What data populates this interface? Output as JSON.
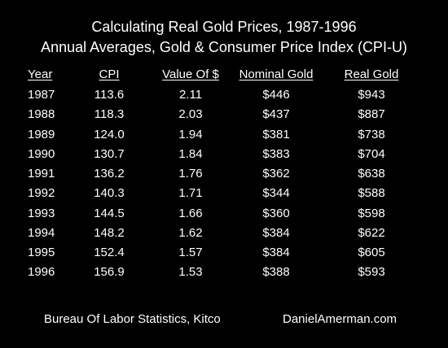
{
  "chart_data": {
    "type": "table",
    "title": "Calculating Real Gold Prices, 1987-1996",
    "subtitle": "Annual Averages, Gold & Consumer Price Index (CPI-U)",
    "columns": [
      "Year",
      "CPI",
      "Value Of $",
      "Nominal Gold",
      "Real Gold"
    ],
    "rows": [
      [
        "1987",
        "113.6",
        "2.11",
        "$446",
        "$943"
      ],
      [
        "1988",
        "118.3",
        "2.03",
        "$437",
        "$887"
      ],
      [
        "1989",
        "124.0",
        "1.94",
        "$381",
        "$738"
      ],
      [
        "1990",
        "130.7",
        "1.84",
        "$383",
        "$704"
      ],
      [
        "1991",
        "136.2",
        "1.76",
        "$362",
        "$638"
      ],
      [
        "1992",
        "140.3",
        "1.71",
        "$344",
        "$588"
      ],
      [
        "1993",
        "144.5",
        "1.66",
        "$360",
        "$598"
      ],
      [
        "1994",
        "148.2",
        "1.62",
        "$384",
        "$622"
      ],
      [
        "1995",
        "152.4",
        "1.57",
        "$384",
        "$605"
      ],
      [
        "1996",
        "156.9",
        "1.53",
        "$388",
        "$593"
      ]
    ],
    "source": "Bureau Of Labor Statistics, Kitco",
    "website": "DanielAmerman.com"
  },
  "colors": {
    "background": "#000000",
    "text": "#ffffff"
  }
}
